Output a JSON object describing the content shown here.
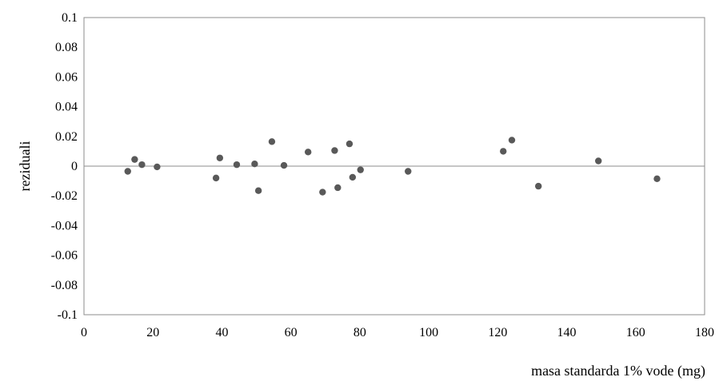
{
  "chart_data": {
    "type": "scatter",
    "title": "",
    "xlabel": "masa standarda 1% vode (mg)",
    "ylabel": "reziduali",
    "xlim": [
      0,
      180
    ],
    "ylim": [
      -0.1,
      0.1
    ],
    "x_ticks": [
      "0",
      "20",
      "40",
      "60",
      "80",
      "100",
      "120",
      "140",
      "160",
      "180"
    ],
    "y_ticks": [
      "0.1",
      "0.08",
      "0.06",
      "0.04",
      "0.02",
      "0",
      "-0.02",
      "-0.04",
      "-0.06",
      "-0.08",
      "-0.1"
    ],
    "grid": false,
    "zero_line": true,
    "marker_color": "#595959",
    "series": [
      {
        "points": [
          {
            "x": 12.7,
            "y": -0.0035
          },
          {
            "x": 14.7,
            "y": 0.0045
          },
          {
            "x": 16.8,
            "y": 0.001
          },
          {
            "x": 21.2,
            "y": -0.0005
          },
          {
            "x": 38.3,
            "y": -0.008
          },
          {
            "x": 39.4,
            "y": 0.0055
          },
          {
            "x": 44.3,
            "y": 0.001
          },
          {
            "x": 49.5,
            "y": 0.0015
          },
          {
            "x": 50.6,
            "y": -0.0165
          },
          {
            "x": 54.5,
            "y": 0.0165
          },
          {
            "x": 58.0,
            "y": 0.0005
          },
          {
            "x": 65.0,
            "y": 0.0095
          },
          {
            "x": 69.2,
            "y": -0.0175
          },
          {
            "x": 72.7,
            "y": 0.0105
          },
          {
            "x": 73.6,
            "y": -0.0145
          },
          {
            "x": 77.0,
            "y": 0.015
          },
          {
            "x": 77.9,
            "y": -0.0075
          },
          {
            "x": 80.2,
            "y": -0.0025
          },
          {
            "x": 94.0,
            "y": -0.0035
          },
          {
            "x": 121.6,
            "y": 0.01
          },
          {
            "x": 124.1,
            "y": 0.0175
          },
          {
            "x": 131.8,
            "y": -0.0135
          },
          {
            "x": 149.2,
            "y": 0.0035
          },
          {
            "x": 166.2,
            "y": -0.0085
          }
        ]
      }
    ]
  }
}
